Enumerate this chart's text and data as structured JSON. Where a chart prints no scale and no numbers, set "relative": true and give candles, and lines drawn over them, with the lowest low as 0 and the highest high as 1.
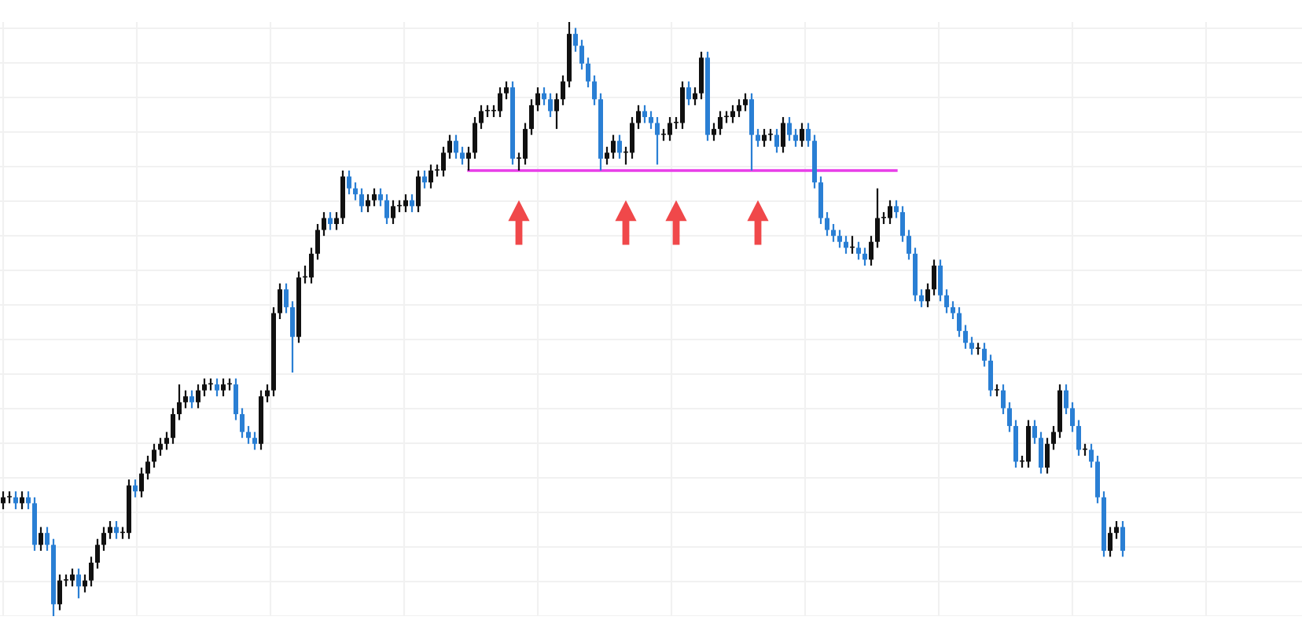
{
  "chart_data": {
    "type": "candlestick",
    "relative": true,
    "grid": true,
    "tick_labels": false,
    "categories": [
      null,
      null,
      null,
      null,
      null,
      null,
      null,
      null,
      null,
      null,
      null,
      null,
      null,
      null,
      null,
      null,
      null,
      null,
      null,
      null,
      null,
      null,
      null,
      null,
      null,
      null,
      null,
      null,
      null,
      null,
      null,
      null,
      null,
      null,
      null,
      null,
      null,
      null,
      null,
      null,
      null,
      null,
      null,
      null,
      null,
      null,
      null,
      null,
      null,
      null,
      null,
      null,
      null,
      null,
      null,
      null,
      null,
      null,
      null,
      null,
      null,
      null,
      null,
      null,
      null,
      null,
      null,
      null,
      null,
      null,
      null,
      null,
      null,
      null,
      null,
      null,
      null,
      null,
      null,
      null,
      null,
      null,
      null,
      null,
      null,
      null,
      null,
      null,
      null,
      null,
      null,
      null,
      null,
      null,
      null,
      null,
      null,
      null,
      null,
      null,
      null,
      null,
      null,
      null,
      null,
      null,
      null,
      null,
      null,
      null,
      null,
      null,
      null,
      null,
      null,
      null,
      null,
      null,
      null,
      null,
      null,
      null,
      null,
      null,
      null,
      null,
      null,
      null,
      null,
      null,
      null,
      null,
      null,
      null,
      null,
      null,
      null,
      null,
      null,
      null,
      null,
      null,
      null,
      null,
      null,
      null,
      null,
      null,
      null,
      null,
      null,
      null,
      null,
      null,
      null,
      null,
      null,
      null,
      null,
      null,
      null,
      null,
      null,
      null,
      null,
      null,
      null,
      null,
      null,
      null,
      null,
      null,
      null,
      null,
      null,
      null,
      null,
      null,
      null
    ],
    "ohlc": [
      [
        0.19,
        0.21,
        0.18,
        0.2
      ],
      [
        0.2,
        0.21,
        0.19,
        0.2
      ],
      [
        0.2,
        0.21,
        0.18,
        0.19
      ],
      [
        0.19,
        0.21,
        0.18,
        0.2
      ],
      [
        0.2,
        0.21,
        0.18,
        0.19
      ],
      [
        0.19,
        0.2,
        0.11,
        0.12
      ],
      [
        0.12,
        0.15,
        0.11,
        0.14
      ],
      [
        0.14,
        0.15,
        0.11,
        0.12
      ],
      [
        0.12,
        0.13,
        0.0,
        0.02
      ],
      [
        0.02,
        0.07,
        0.01,
        0.06
      ],
      [
        0.06,
        0.07,
        0.05,
        0.06
      ],
      [
        0.06,
        0.08,
        0.05,
        0.07
      ],
      [
        0.07,
        0.08,
        0.03,
        0.05
      ],
      [
        0.05,
        0.07,
        0.04,
        0.06
      ],
      [
        0.06,
        0.1,
        0.05,
        0.09
      ],
      [
        0.09,
        0.13,
        0.08,
        0.12
      ],
      [
        0.12,
        0.15,
        0.11,
        0.14
      ],
      [
        0.14,
        0.16,
        0.13,
        0.15
      ],
      [
        0.15,
        0.16,
        0.13,
        0.14
      ],
      [
        0.14,
        0.15,
        0.13,
        0.14
      ],
      [
        0.14,
        0.23,
        0.13,
        0.22
      ],
      [
        0.22,
        0.23,
        0.2,
        0.21
      ],
      [
        0.21,
        0.25,
        0.2,
        0.24
      ],
      [
        0.24,
        0.27,
        0.23,
        0.26
      ],
      [
        0.26,
        0.29,
        0.25,
        0.28
      ],
      [
        0.28,
        0.3,
        0.27,
        0.29
      ],
      [
        0.29,
        0.31,
        0.28,
        0.3
      ],
      [
        0.3,
        0.35,
        0.29,
        0.34
      ],
      [
        0.34,
        0.39,
        0.33,
        0.36
      ],
      [
        0.36,
        0.38,
        0.35,
        0.37
      ],
      [
        0.37,
        0.38,
        0.35,
        0.36
      ],
      [
        0.36,
        0.39,
        0.35,
        0.38
      ],
      [
        0.38,
        0.4,
        0.37,
        0.39
      ],
      [
        0.39,
        0.4,
        0.38,
        0.39
      ],
      [
        0.39,
        0.4,
        0.37,
        0.38
      ],
      [
        0.38,
        0.4,
        0.37,
        0.39
      ],
      [
        0.39,
        0.4,
        0.38,
        0.39
      ],
      [
        0.39,
        0.4,
        0.33,
        0.34
      ],
      [
        0.34,
        0.35,
        0.3,
        0.31
      ],
      [
        0.31,
        0.32,
        0.29,
        0.3
      ],
      [
        0.3,
        0.31,
        0.28,
        0.29
      ],
      [
        0.29,
        0.38,
        0.28,
        0.37
      ],
      [
        0.37,
        0.39,
        0.36,
        0.38
      ],
      [
        0.38,
        0.52,
        0.37,
        0.51
      ],
      [
        0.51,
        0.56,
        0.5,
        0.55
      ],
      [
        0.55,
        0.56,
        0.51,
        0.52
      ],
      [
        0.52,
        0.53,
        0.41,
        0.47
      ],
      [
        0.47,
        0.58,
        0.46,
        0.57
      ],
      [
        0.57,
        0.59,
        0.56,
        0.57
      ],
      [
        0.57,
        0.62,
        0.56,
        0.61
      ],
      [
        0.61,
        0.66,
        0.6,
        0.65
      ],
      [
        0.65,
        0.68,
        0.64,
        0.67
      ],
      [
        0.67,
        0.68,
        0.65,
        0.66
      ],
      [
        0.66,
        0.68,
        0.65,
        0.67
      ],
      [
        0.67,
        0.75,
        0.66,
        0.74
      ],
      [
        0.74,
        0.75,
        0.71,
        0.72
      ],
      [
        0.72,
        0.73,
        0.7,
        0.71
      ],
      [
        0.71,
        0.72,
        0.68,
        0.69
      ],
      [
        0.69,
        0.71,
        0.68,
        0.7
      ],
      [
        0.7,
        0.72,
        0.69,
        0.71
      ],
      [
        0.71,
        0.72,
        0.69,
        0.7
      ],
      [
        0.7,
        0.71,
        0.66,
        0.67
      ],
      [
        0.67,
        0.7,
        0.66,
        0.69
      ],
      [
        0.69,
        0.7,
        0.68,
        0.69
      ],
      [
        0.69,
        0.71,
        0.68,
        0.7
      ],
      [
        0.7,
        0.71,
        0.68,
        0.69
      ],
      [
        0.69,
        0.75,
        0.68,
        0.74
      ],
      [
        0.74,
        0.75,
        0.72,
        0.73
      ],
      [
        0.73,
        0.76,
        0.72,
        0.75
      ],
      [
        0.75,
        0.76,
        0.74,
        0.75
      ],
      [
        0.75,
        0.79,
        0.74,
        0.78
      ],
      [
        0.78,
        0.81,
        0.77,
        0.8
      ],
      [
        0.8,
        0.81,
        0.77,
        0.78
      ],
      [
        0.78,
        0.79,
        0.76,
        0.77
      ],
      [
        0.77,
        0.79,
        0.75,
        0.78
      ],
      [
        0.78,
        0.84,
        0.77,
        0.83
      ],
      [
        0.83,
        0.86,
        0.82,
        0.85
      ],
      [
        0.85,
        0.86,
        0.84,
        0.85
      ],
      [
        0.85,
        0.86,
        0.84,
        0.85
      ],
      [
        0.85,
        0.89,
        0.84,
        0.88
      ],
      [
        0.88,
        0.9,
        0.87,
        0.89
      ],
      [
        0.89,
        0.9,
        0.76,
        0.77
      ],
      [
        0.77,
        0.78,
        0.75,
        0.77
      ],
      [
        0.77,
        0.83,
        0.76,
        0.82
      ],
      [
        0.82,
        0.87,
        0.81,
        0.86
      ],
      [
        0.86,
        0.89,
        0.85,
        0.88
      ],
      [
        0.88,
        0.89,
        0.86,
        0.87
      ],
      [
        0.87,
        0.88,
        0.84,
        0.85
      ],
      [
        0.85,
        0.88,
        0.82,
        0.87
      ],
      [
        0.87,
        0.91,
        0.86,
        0.9
      ],
      [
        0.9,
        1.0,
        0.89,
        0.98
      ],
      [
        0.98,
        0.99,
        0.95,
        0.96
      ],
      [
        0.96,
        0.97,
        0.92,
        0.93
      ],
      [
        0.93,
        0.94,
        0.89,
        0.9
      ],
      [
        0.9,
        0.91,
        0.86,
        0.87
      ],
      [
        0.87,
        0.88,
        0.75,
        0.77
      ],
      [
        0.77,
        0.79,
        0.76,
        0.78
      ],
      [
        0.78,
        0.81,
        0.77,
        0.8
      ],
      [
        0.8,
        0.81,
        0.77,
        0.78
      ],
      [
        0.78,
        0.79,
        0.76,
        0.78
      ],
      [
        0.78,
        0.84,
        0.77,
        0.83
      ],
      [
        0.83,
        0.86,
        0.82,
        0.85
      ],
      [
        0.85,
        0.86,
        0.83,
        0.84
      ],
      [
        0.84,
        0.85,
        0.82,
        0.83
      ],
      [
        0.83,
        0.84,
        0.76,
        0.81
      ],
      [
        0.81,
        0.82,
        0.8,
        0.81
      ],
      [
        0.81,
        0.84,
        0.8,
        0.83
      ],
      [
        0.83,
        0.84,
        0.82,
        0.83
      ],
      [
        0.83,
        0.9,
        0.82,
        0.89
      ],
      [
        0.89,
        0.9,
        0.86,
        0.87
      ],
      [
        0.87,
        0.89,
        0.86,
        0.88
      ],
      [
        0.88,
        0.95,
        0.87,
        0.94
      ],
      [
        0.94,
        0.95,
        0.8,
        0.81
      ],
      [
        0.81,
        0.83,
        0.8,
        0.82
      ],
      [
        0.82,
        0.85,
        0.81,
        0.84
      ],
      [
        0.84,
        0.85,
        0.83,
        0.84
      ],
      [
        0.84,
        0.86,
        0.83,
        0.85
      ],
      [
        0.85,
        0.87,
        0.84,
        0.86
      ],
      [
        0.86,
        0.88,
        0.85,
        0.87
      ],
      [
        0.87,
        0.88,
        0.75,
        0.81
      ],
      [
        0.81,
        0.82,
        0.79,
        0.8
      ],
      [
        0.8,
        0.82,
        0.79,
        0.81
      ],
      [
        0.81,
        0.82,
        0.8,
        0.81
      ],
      [
        0.81,
        0.82,
        0.78,
        0.79
      ],
      [
        0.79,
        0.84,
        0.78,
        0.83
      ],
      [
        0.83,
        0.84,
        0.8,
        0.81
      ],
      [
        0.81,
        0.82,
        0.79,
        0.8
      ],
      [
        0.8,
        0.83,
        0.79,
        0.82
      ],
      [
        0.82,
        0.83,
        0.79,
        0.8
      ],
      [
        0.8,
        0.81,
        0.72,
        0.73
      ],
      [
        0.73,
        0.74,
        0.66,
        0.67
      ],
      [
        0.67,
        0.68,
        0.64,
        0.65
      ],
      [
        0.65,
        0.66,
        0.63,
        0.64
      ],
      [
        0.64,
        0.65,
        0.62,
        0.63
      ],
      [
        0.63,
        0.64,
        0.61,
        0.62
      ],
      [
        0.62,
        0.64,
        0.61,
        0.62
      ],
      [
        0.62,
        0.63,
        0.6,
        0.61
      ],
      [
        0.61,
        0.62,
        0.59,
        0.6
      ],
      [
        0.6,
        0.64,
        0.59,
        0.63
      ],
      [
        0.63,
        0.72,
        0.62,
        0.67
      ],
      [
        0.67,
        0.68,
        0.66,
        0.67
      ],
      [
        0.67,
        0.7,
        0.66,
        0.69
      ],
      [
        0.69,
        0.7,
        0.67,
        0.68
      ],
      [
        0.68,
        0.69,
        0.63,
        0.64
      ],
      [
        0.64,
        0.65,
        0.6,
        0.61
      ],
      [
        0.61,
        0.62,
        0.53,
        0.54
      ],
      [
        0.54,
        0.55,
        0.52,
        0.53
      ],
      [
        0.53,
        0.56,
        0.52,
        0.55
      ],
      [
        0.55,
        0.6,
        0.54,
        0.59
      ],
      [
        0.59,
        0.6,
        0.53,
        0.54
      ],
      [
        0.54,
        0.55,
        0.51,
        0.52
      ],
      [
        0.52,
        0.53,
        0.5,
        0.51
      ],
      [
        0.51,
        0.52,
        0.47,
        0.48
      ],
      [
        0.48,
        0.49,
        0.45,
        0.46
      ],
      [
        0.46,
        0.47,
        0.44,
        0.45
      ],
      [
        0.45,
        0.46,
        0.44,
        0.45
      ],
      [
        0.45,
        0.46,
        0.42,
        0.43
      ],
      [
        0.43,
        0.44,
        0.37,
        0.38
      ],
      [
        0.38,
        0.39,
        0.37,
        0.38
      ],
      [
        0.38,
        0.39,
        0.34,
        0.35
      ],
      [
        0.35,
        0.36,
        0.31,
        0.32
      ],
      [
        0.32,
        0.33,
        0.25,
        0.26
      ],
      [
        0.26,
        0.27,
        0.25,
        0.26
      ],
      [
        0.26,
        0.33,
        0.25,
        0.32
      ],
      [
        0.32,
        0.33,
        0.29,
        0.3
      ],
      [
        0.3,
        0.31,
        0.24,
        0.25
      ],
      [
        0.25,
        0.3,
        0.24,
        0.29
      ],
      [
        0.29,
        0.32,
        0.28,
        0.31
      ],
      [
        0.31,
        0.39,
        0.3,
        0.38
      ],
      [
        0.38,
        0.39,
        0.34,
        0.35
      ],
      [
        0.35,
        0.36,
        0.31,
        0.32
      ],
      [
        0.32,
        0.33,
        0.27,
        0.28
      ],
      [
        0.28,
        0.29,
        0.27,
        0.28
      ],
      [
        0.28,
        0.29,
        0.25,
        0.26
      ],
      [
        0.26,
        0.27,
        0.19,
        0.2
      ],
      [
        0.2,
        0.21,
        0.1,
        0.11
      ],
      [
        0.11,
        0.15,
        0.1,
        0.14
      ],
      [
        0.14,
        0.16,
        0.13,
        0.15
      ],
      [
        0.15,
        0.16,
        0.1,
        0.11
      ]
    ],
    "colors": [
      "#111111",
      "#111111",
      "#2a7fd4",
      "#111111",
      "#2a7fd4",
      "#2a7fd4",
      "#111111",
      "#2a7fd4",
      "#2a7fd4",
      "#111111",
      "#111111",
      "#111111",
      "#2a7fd4",
      "#111111",
      "#111111",
      "#111111",
      "#111111",
      "#111111",
      "#2a7fd4",
      "#111111",
      "#111111",
      "#2a7fd4",
      "#111111",
      "#111111",
      "#111111",
      "#111111",
      "#111111",
      "#111111",
      "#111111",
      "#111111",
      "#2a7fd4",
      "#111111",
      "#111111",
      "#111111",
      "#2a7fd4",
      "#111111",
      "#111111",
      "#2a7fd4",
      "#2a7fd4",
      "#2a7fd4",
      "#2a7fd4",
      "#111111",
      "#111111",
      "#111111",
      "#111111",
      "#2a7fd4",
      "#2a7fd4",
      "#111111",
      "#111111",
      "#111111",
      "#111111",
      "#111111",
      "#2a7fd4",
      "#111111",
      "#111111",
      "#2a7fd4",
      "#2a7fd4",
      "#2a7fd4",
      "#111111",
      "#111111",
      "#2a7fd4",
      "#2a7fd4",
      "#111111",
      "#111111",
      "#111111",
      "#2a7fd4",
      "#111111",
      "#2a7fd4",
      "#111111",
      "#111111",
      "#111111",
      "#111111",
      "#2a7fd4",
      "#2a7fd4",
      "#111111",
      "#111111",
      "#111111",
      "#111111",
      "#111111",
      "#111111",
      "#111111",
      "#2a7fd4",
      "#111111",
      "#111111",
      "#111111",
      "#111111",
      "#2a7fd4",
      "#2a7fd4",
      "#111111",
      "#111111",
      "#111111",
      "#2a7fd4",
      "#2a7fd4",
      "#2a7fd4",
      "#2a7fd4",
      "#2a7fd4",
      "#111111",
      "#111111",
      "#2a7fd4",
      "#111111",
      "#111111",
      "#111111",
      "#2a7fd4",
      "#2a7fd4",
      "#2a7fd4",
      "#111111",
      "#111111",
      "#111111",
      "#111111",
      "#2a7fd4",
      "#111111",
      "#111111",
      "#2a7fd4",
      "#111111",
      "#111111",
      "#111111",
      "#111111",
      "#111111",
      "#111111",
      "#2a7fd4",
      "#2a7fd4",
      "#111111",
      "#111111",
      "#2a7fd4",
      "#111111",
      "#2a7fd4",
      "#2a7fd4",
      "#111111",
      "#2a7fd4",
      "#2a7fd4",
      "#2a7fd4",
      "#2a7fd4",
      "#2a7fd4",
      "#2a7fd4",
      "#2a7fd4",
      "#111111",
      "#2a7fd4",
      "#2a7fd4",
      "#111111",
      "#111111",
      "#111111",
      "#111111",
      "#2a7fd4",
      "#2a7fd4",
      "#2a7fd4",
      "#2a7fd4",
      "#2a7fd4",
      "#111111",
      "#111111",
      "#2a7fd4",
      "#2a7fd4",
      "#2a7fd4",
      "#2a7fd4",
      "#2a7fd4",
      "#2a7fd4",
      "#111111",
      "#2a7fd4",
      "#2a7fd4",
      "#111111",
      "#2a7fd4",
      "#2a7fd4",
      "#2a7fd4",
      "#111111",
      "#111111",
      "#2a7fd4",
      "#2a7fd4",
      "#111111",
      "#111111",
      "#111111",
      "#2a7fd4",
      "#2a7fd4",
      "#2a7fd4",
      "#111111",
      "#2a7fd4",
      "#2a7fd4",
      "#2a7fd4",
      "#111111",
      "#111111",
      "#2a7fd4"
    ],
    "ref_lines": [
      {
        "axis": "y",
        "value": 0.75,
        "color": "#e83ee8"
      }
    ]
  }
}
